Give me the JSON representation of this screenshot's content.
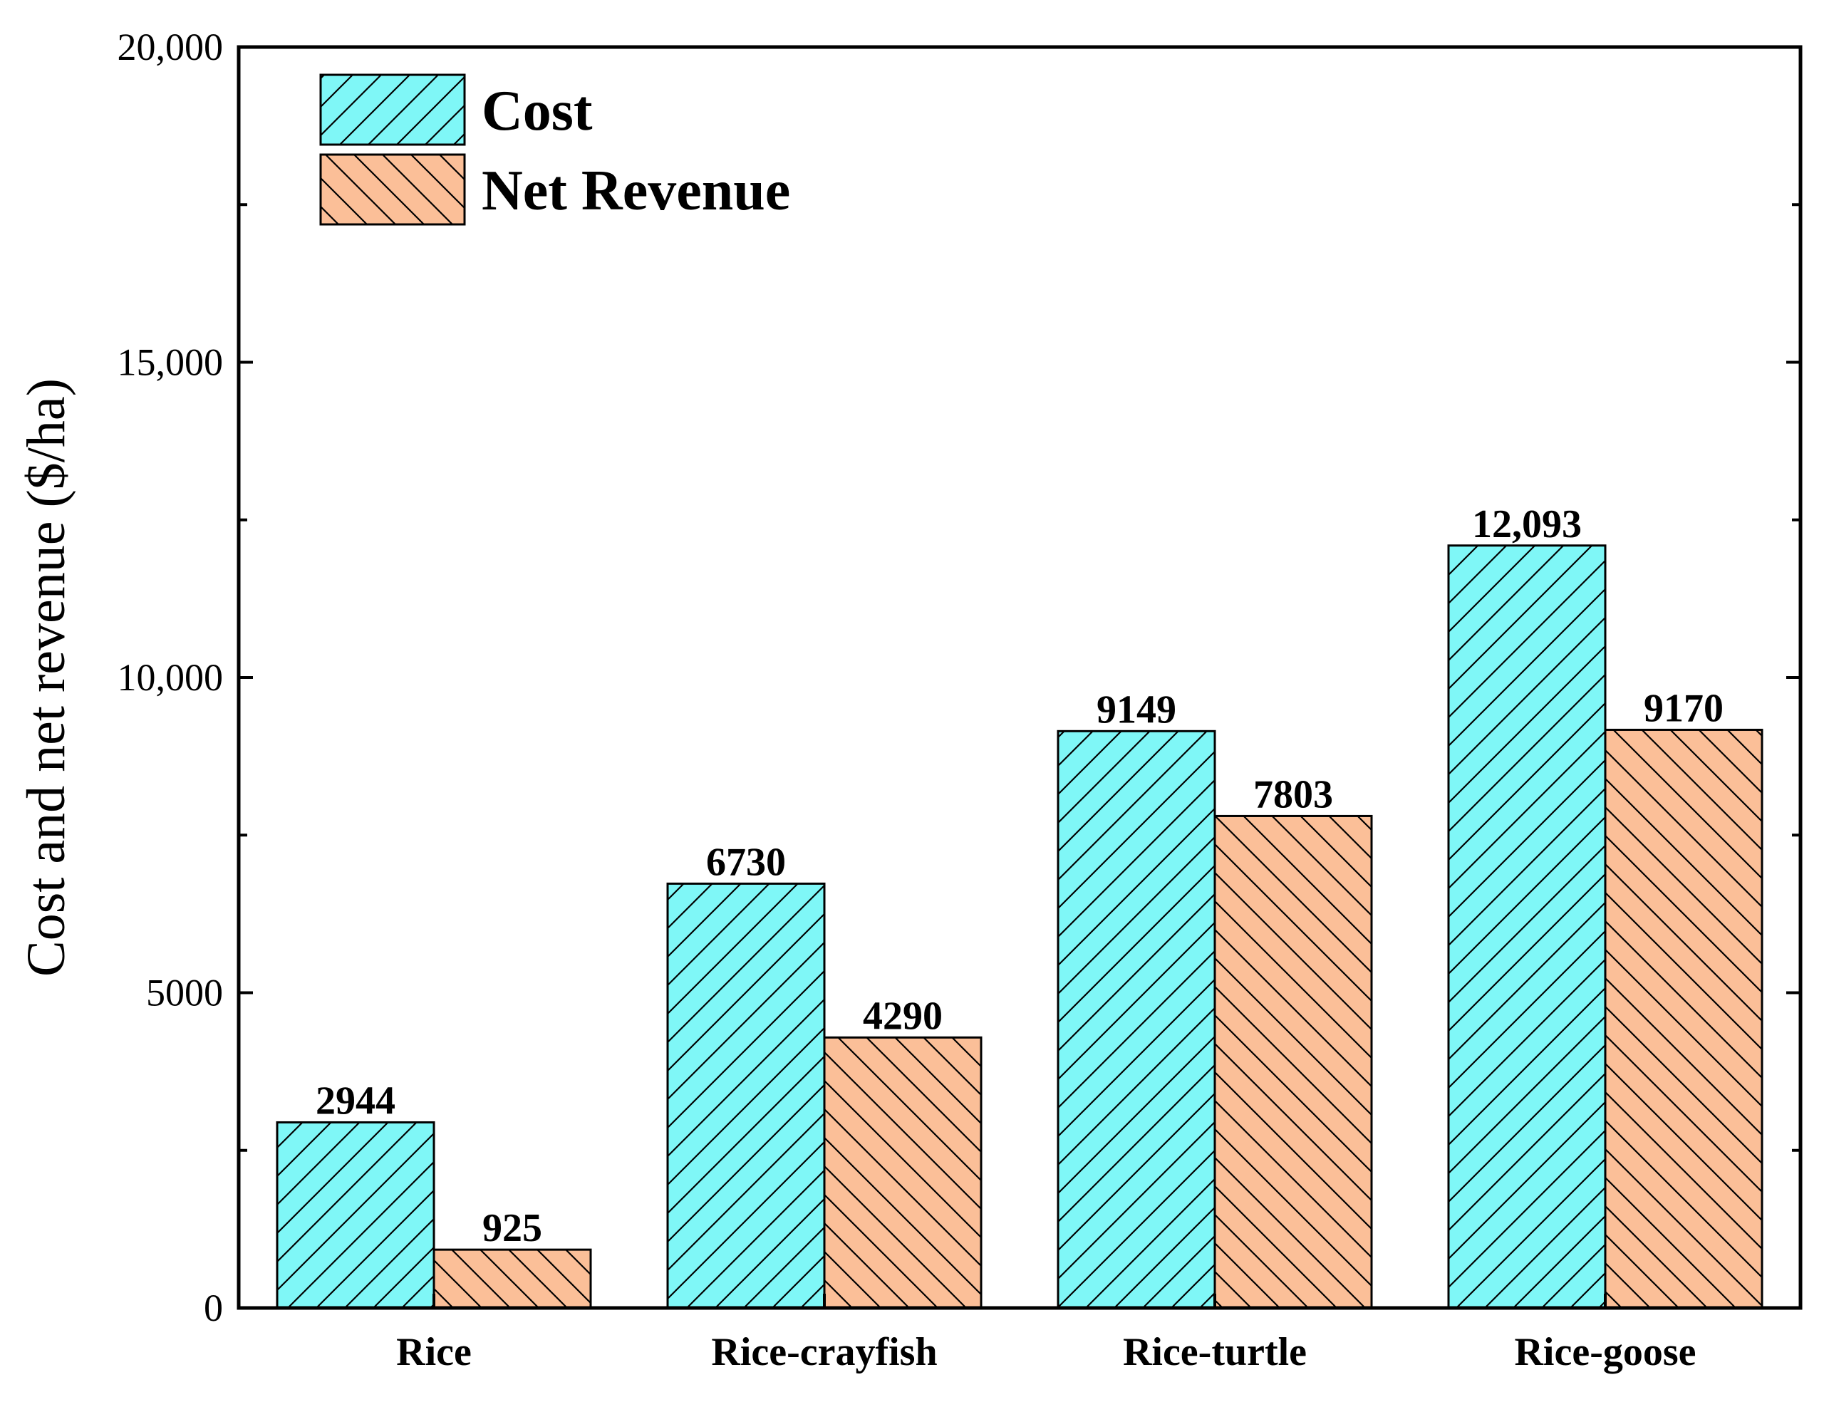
{
  "chart_data": {
    "type": "bar",
    "title": "",
    "xlabel": "",
    "ylabel": "Cost and net revenue ($/ha)",
    "categories": [
      "Rice",
      "Rice-crayfish",
      "Rice-turtle",
      "Rice-goose"
    ],
    "series": [
      {
        "name": "Cost",
        "values": [
          2944,
          6730,
          9149,
          12093
        ],
        "labels": [
          "2944",
          "6730",
          "9149",
          "12,093"
        ],
        "color": "#7ff7f7",
        "hatch": "forward"
      },
      {
        "name": "Net Revenue",
        "values": [
          925,
          4290,
          7803,
          9170
        ],
        "labels": [
          "925",
          "4290",
          "7803",
          "9170"
        ],
        "color": "#fbbf98",
        "hatch": "backward"
      }
    ],
    "ylim": [
      0,
      20000
    ],
    "yticks": [
      0,
      5000,
      10000,
      15000,
      20000
    ],
    "ytick_labels": [
      "0",
      "5000",
      "10,000",
      "15,000",
      "20,000"
    ],
    "legend_position": "top-left",
    "grid": false
  }
}
